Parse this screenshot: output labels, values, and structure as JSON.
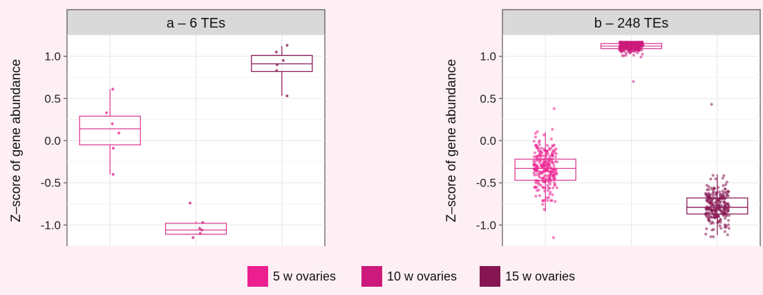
{
  "chart_data": [
    {
      "type": "box",
      "panel_title": "a – 6 TEs",
      "ylabel": "Z–score of gene abundance",
      "ylim": [
        -1.25,
        1.25
      ],
      "yticks": [
        -1.0,
        -0.5,
        0.0,
        0.5,
        1.0
      ],
      "ytick_labels": [
        "-1.0",
        "-0.5",
        "0.0",
        "0.5",
        "1.0"
      ],
      "groups": [
        {
          "name": "5 w ovaries",
          "q1": -0.05,
          "median": 0.14,
          "q3": 0.29,
          "whisker_low": -0.4,
          "whisker_high": 0.61,
          "points": [
            0.61,
            0.33,
            0.2,
            0.09,
            -0.09,
            -0.4
          ]
        },
        {
          "name": "10 w ovaries",
          "q1": -1.11,
          "median": -1.06,
          "q3": -0.98,
          "whisker_low": -1.11,
          "whisker_high": -0.96,
          "points": [
            -0.74,
            -0.97,
            -1.04,
            -1.06,
            -1.1,
            -1.15
          ]
        },
        {
          "name": "15 w ovaries",
          "q1": 0.82,
          "median": 0.91,
          "q3": 1.01,
          "whisker_low": 0.53,
          "whisker_high": 1.12,
          "points": [
            1.13,
            1.05,
            0.95,
            0.9,
            0.83,
            0.53
          ]
        }
      ],
      "grid": true
    },
    {
      "type": "box",
      "panel_title": "b – 248 TEs",
      "ylabel": "Z–score of gene abundance",
      "ylim": [
        -1.25,
        1.25
      ],
      "yticks": [
        -1.0,
        -0.5,
        0.0,
        0.5,
        1.0
      ],
      "ytick_labels": [
        "-1.0",
        "-0.5",
        "0.0",
        "0.5",
        "1.0"
      ],
      "groups": [
        {
          "name": "5 w ovaries",
          "q1": -0.47,
          "median": -0.33,
          "q3": -0.22,
          "whisker_low": -0.84,
          "whisker_high": 0.1,
          "n_points": 248,
          "point_min": -1.15,
          "point_max": 0.38
        },
        {
          "name": "10 w ovaries",
          "q1": 1.09,
          "median": 1.12,
          "q3": 1.15,
          "whisker_low": 1.04,
          "whisker_high": 1.17,
          "n_points": 248,
          "point_min": 0.7,
          "point_max": 1.17
        },
        {
          "name": "15 w ovaries",
          "q1": -0.87,
          "median": -0.79,
          "q3": -0.68,
          "whisker_low": -1.12,
          "whisker_high": -0.4,
          "n_points": 248,
          "point_min": -1.14,
          "point_max": 0.43
        }
      ],
      "grid": true
    }
  ],
  "legend": {
    "placement": "bottom",
    "items": [
      {
        "label": "5 w ovaries",
        "color": "#ec1f8f"
      },
      {
        "label": "10 w ovaries",
        "color": "#cc1a7c"
      },
      {
        "label": "15 w ovaries",
        "color": "#861652"
      }
    ]
  },
  "colors": {
    "background": "#fdeff4",
    "panel_strip": "#d9d9d9",
    "grid": "#ebebeb",
    "box_pink": "#dd3a92",
    "box_dark": "#8a1a55"
  }
}
